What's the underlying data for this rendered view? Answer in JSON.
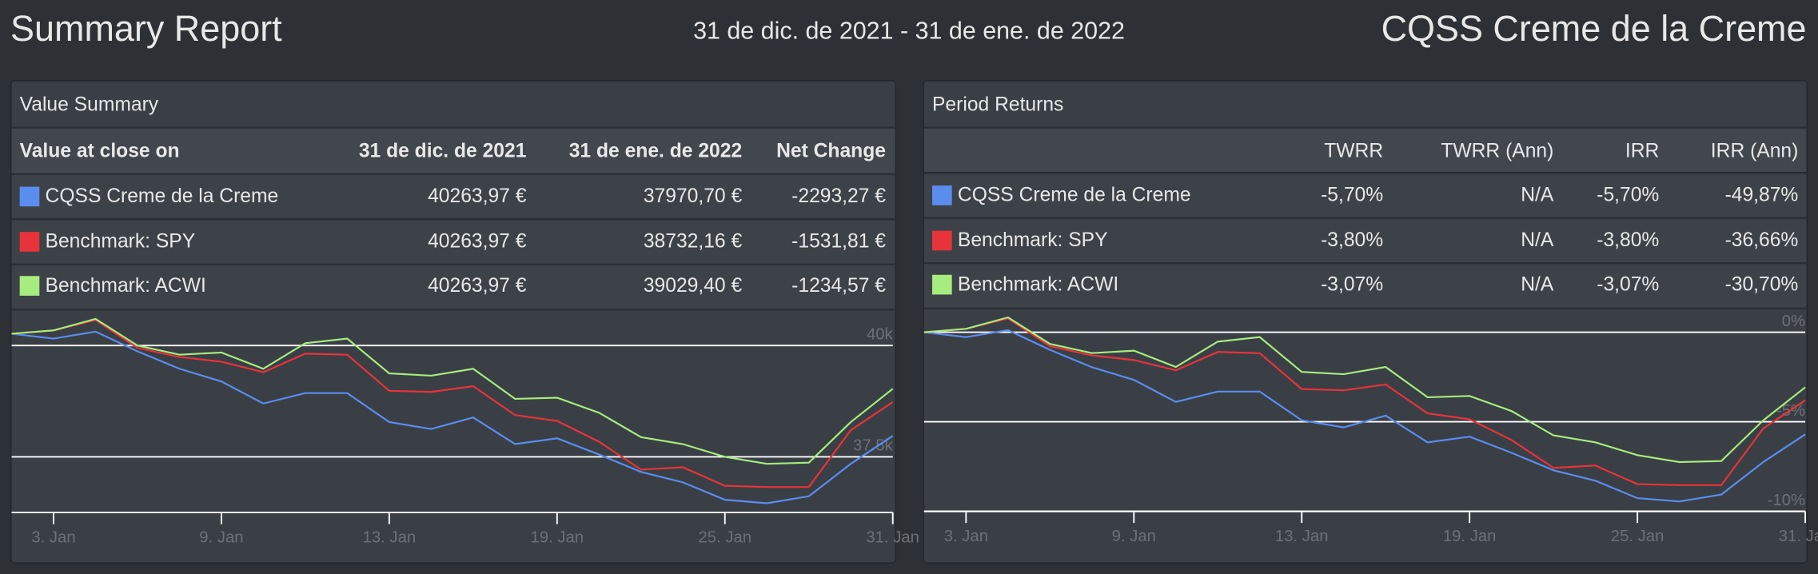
{
  "header": {
    "title": "Summary Report",
    "date_range": "31 de dic. de 2021 - 31 de ene. de 2022",
    "portfolio": "CQSS Creme de la Creme"
  },
  "value_summary": {
    "title": "Value Summary",
    "columns": [
      "Value at close on",
      "31 de dic. de 2021",
      "31 de ene. de 2022",
      "Net Change"
    ],
    "rows": [
      {
        "name": "CQSS Creme de la Creme",
        "color": "#5b8def",
        "cells": [
          "40263,97 €",
          "37970,70 €",
          "-2293,27 €"
        ]
      },
      {
        "name": "Benchmark: SPY",
        "color": "#e8333a",
        "cells": [
          "40263,97 €",
          "38732,16 €",
          "-1531,81 €"
        ]
      },
      {
        "name": "Benchmark: ACWI",
        "color": "#a6ec7f",
        "cells": [
          "40263,97 €",
          "39029,40 €",
          "-1234,57 €"
        ]
      }
    ]
  },
  "period_returns": {
    "title": "Period Returns",
    "columns": [
      "TWRR",
      "TWRR (Ann)",
      "IRR",
      "IRR (Ann)"
    ],
    "rows": [
      {
        "name": "CQSS Creme de la Creme",
        "color": "#5b8def",
        "cells": [
          "-5,70%",
          "N/A",
          "-5,70%",
          "-49,87%"
        ]
      },
      {
        "name": "Benchmark: SPY",
        "color": "#e8333a",
        "cells": [
          "-3,80%",
          "N/A",
          "-3,80%",
          "-36,66%"
        ]
      },
      {
        "name": "Benchmark: ACWI",
        "color": "#a6ec7f",
        "cells": [
          "-3,07%",
          "N/A",
          "-3,07%",
          "-30,70%"
        ]
      }
    ]
  },
  "chart_data": [
    {
      "type": "line",
      "categories": [
        null,
        "3. Jan",
        null,
        null,
        null,
        "9. Jan",
        null,
        null,
        null,
        "13. Jan",
        null,
        null,
        null,
        "19. Jan",
        null,
        null,
        null,
        "25. Jan",
        null,
        null,
        null,
        "31. Jan"
      ],
      "series": [
        {
          "color": "#5b8def",
          "values": [
            40264,
            40156,
            40312,
            39870,
            39479,
            39193,
            38698,
            38932,
            38932,
            38281,
            38125,
            38385,
            37786,
            37917,
            37552,
            37161,
            36927,
            36536,
            36458,
            36615,
            37344,
            37971
          ]
        },
        {
          "color": "#e8333a",
          "values": [
            40264,
            40339,
            40573,
            39948,
            39740,
            39636,
            39401,
            39818,
            39792,
            38984,
            38958,
            39088,
            38437,
            38307,
            37838,
            37213,
            37265,
            36849,
            36823,
            36823,
            38099,
            38732
          ]
        },
        {
          "color": "#a6ec7f",
          "values": [
            40264,
            40339,
            40599,
            40000,
            39792,
            39844,
            39479,
            40052,
            40156,
            39375,
            39323,
            39479,
            38802,
            38828,
            38490,
            37943,
            37786,
            37500,
            37344,
            37370,
            38281,
            39029
          ]
        }
      ],
      "ylim": [
        36250,
        40780
      ],
      "yticks": [
        {
          "value": 40000,
          "label": "40k"
        },
        {
          "value": 37500,
          "label": "37.5k"
        }
      ],
      "grid": true
    },
    {
      "type": "line",
      "categories": [
        null,
        "3. Jan",
        null,
        null,
        null,
        "9. Jan",
        null,
        null,
        null,
        "13. Jan",
        null,
        null,
        null,
        "19. Jan",
        null,
        null,
        null,
        "25. Jan",
        null,
        null,
        null,
        "31. Jan"
      ],
      "series": [
        {
          "color": "#5b8def",
          "values": [
            0,
            -0.27,
            0.12,
            -0.98,
            -1.95,
            -2.66,
            -3.89,
            -3.31,
            -3.31,
            -4.92,
            -5.31,
            -4.66,
            -6.15,
            -5.83,
            -6.73,
            -7.71,
            -8.29,
            -9.26,
            -9.45,
            -9.06,
            -7.25,
            -5.7
          ]
        },
        {
          "color": "#e8333a",
          "values": [
            0,
            0.19,
            0.77,
            -0.78,
            -1.29,
            -1.55,
            -2.13,
            -1.1,
            -1.17,
            -3.17,
            -3.24,
            -2.92,
            -4.53,
            -4.86,
            -6.02,
            -7.57,
            -7.44,
            -8.48,
            -8.54,
            -8.54,
            -5.37,
            -3.8
          ]
        },
        {
          "color": "#a6ec7f",
          "values": [
            0,
            0.19,
            0.83,
            -0.65,
            -1.16,
            -1.03,
            -1.94,
            -0.52,
            -0.27,
            -2.21,
            -2.34,
            -1.94,
            -3.63,
            -3.56,
            -4.4,
            -5.76,
            -6.15,
            -6.86,
            -7.25,
            -7.19,
            -4.92,
            -3.07
          ]
        }
      ],
      "ylim": [
        -10,
        1.2
      ],
      "yticks": [
        {
          "value": 0,
          "label": "0%"
        },
        {
          "value": -5,
          "label": "-5%"
        },
        {
          "value": -10,
          "label": "-10%"
        }
      ],
      "grid": true
    }
  ]
}
